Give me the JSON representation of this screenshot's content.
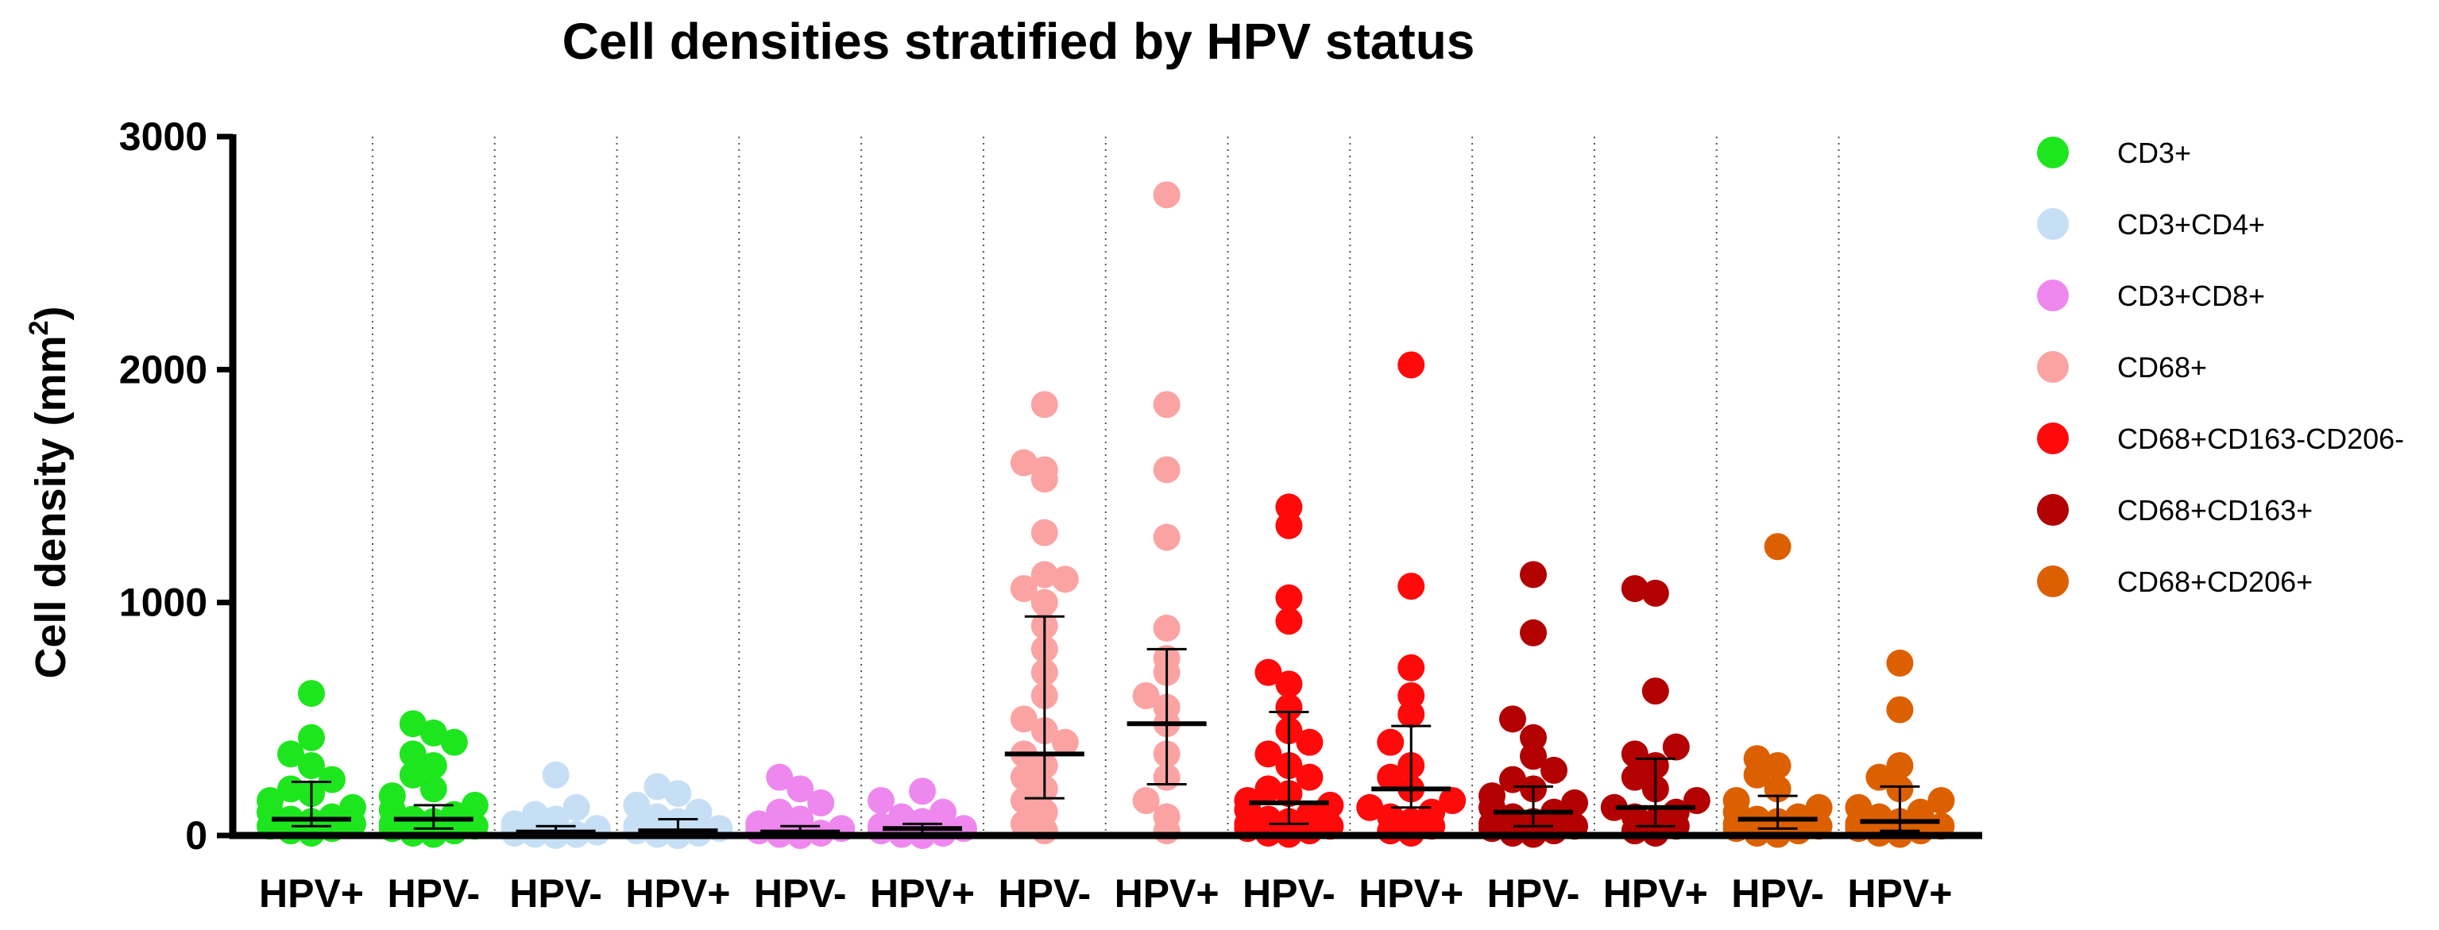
{
  "chart_data": {
    "type": "scatter",
    "title": "Cell densities stratified by HPV status",
    "ylabel_main": "Cell density (mm",
    "ylabel_sup": "2",
    "ylabel_close": ")",
    "ylim": [
      0,
      3000
    ],
    "yticks": [
      "0",
      "1000",
      "2000",
      "3000"
    ],
    "ytick_values": [
      0,
      1000,
      2000,
      3000
    ],
    "grid": "vertical dotted separators between groups",
    "legend_position": "right",
    "legend": [
      {
        "label": "CD3+",
        "color": "#1ee61e"
      },
      {
        "label": "CD3+CD4+",
        "color": "#c6dff5"
      },
      {
        "label": "CD3+CD8+",
        "color": "#ee88ee"
      },
      {
        "label": "CD68+",
        "color": "#fba3a3"
      },
      {
        "label": "CD68+CD163-CD206-",
        "color": "#ff0a0a"
      },
      {
        "label": "CD68+CD163+",
        "color": "#b30000"
      },
      {
        "label": "CD68+CD206+",
        "color": "#dd6000"
      }
    ],
    "groups": [
      {
        "label": "HPV+",
        "series": 0,
        "median": 70,
        "q1": 40,
        "q3": 230,
        "points": [
          610,
          420,
          350,
          300,
          240,
          200,
          180,
          150,
          120,
          100,
          80,
          70,
          60,
          50,
          40,
          30,
          20,
          10
        ]
      },
      {
        "label": "HPV-",
        "series": 0,
        "median": 70,
        "q1": 30,
        "q3": 130,
        "points": [
          480,
          440,
          400,
          350,
          300,
          260,
          200,
          170,
          130,
          110,
          90,
          70,
          60,
          50,
          40,
          30,
          20,
          10,
          5
        ]
      },
      {
        "label": "HPV-",
        "series": 1,
        "median": 15,
        "q1": 5,
        "q3": 40,
        "points": [
          260,
          120,
          90,
          70,
          50,
          30,
          20,
          15,
          10,
          5,
          5,
          0
        ]
      },
      {
        "label": "HPV+",
        "series": 1,
        "median": 20,
        "q1": 5,
        "q3": 70,
        "points": [
          210,
          180,
          130,
          100,
          80,
          60,
          40,
          30,
          20,
          10,
          5,
          0
        ]
      },
      {
        "label": "HPV-",
        "series": 2,
        "median": 15,
        "q1": 5,
        "q3": 40,
        "points": [
          250,
          200,
          140,
          100,
          70,
          50,
          30,
          20,
          10,
          5,
          0
        ]
      },
      {
        "label": "HPV+",
        "series": 2,
        "median": 30,
        "q1": 10,
        "q3": 50,
        "points": [
          190,
          150,
          100,
          80,
          60,
          40,
          30,
          20,
          10,
          5,
          0
        ]
      },
      {
        "label": "HPV-",
        "series": 3,
        "median": 350,
        "q1": 160,
        "q3": 940,
        "points": [
          1850,
          1600,
          1570,
          1530,
          1300,
          1120,
          1100,
          1060,
          1000,
          900,
          800,
          700,
          600,
          500,
          450,
          400,
          350,
          300,
          250,
          200,
          150,
          100,
          50,
          20
        ]
      },
      {
        "label": "HPV+",
        "series": 3,
        "median": 480,
        "q1": 220,
        "q3": 800,
        "points": [
          2750,
          1850,
          1570,
          1280,
          890,
          760,
          700,
          600,
          550,
          480,
          350,
          250,
          150,
          80,
          20
        ]
      },
      {
        "label": "HPV-",
        "series": 4,
        "median": 140,
        "q1": 50,
        "q3": 530,
        "points": [
          1410,
          1330,
          1020,
          920,
          700,
          650,
          550,
          450,
          400,
          350,
          300,
          250,
          200,
          180,
          150,
          130,
          110,
          90,
          70,
          60,
          50,
          40,
          30,
          20,
          10,
          5
        ]
      },
      {
        "label": "HPV+",
        "series": 4,
        "median": 200,
        "q1": 120,
        "q3": 470,
        "points": [
          2020,
          1070,
          720,
          600,
          520,
          400,
          300,
          250,
          200,
          150,
          120,
          100,
          80,
          60,
          40,
          20,
          10
        ]
      },
      {
        "label": "HPV-",
        "series": 5,
        "median": 100,
        "q1": 40,
        "q3": 210,
        "points": [
          1120,
          870,
          500,
          420,
          340,
          280,
          240,
          200,
          170,
          140,
          120,
          100,
          80,
          60,
          50,
          40,
          30,
          20,
          10,
          5
        ]
      },
      {
        "label": "HPV+",
        "series": 5,
        "median": 120,
        "q1": 40,
        "q3": 330,
        "points": [
          1060,
          1040,
          620,
          380,
          350,
          300,
          250,
          200,
          150,
          120,
          100,
          80,
          60,
          40,
          20,
          10
        ]
      },
      {
        "label": "HPV-",
        "series": 6,
        "median": 70,
        "q1": 30,
        "q3": 170,
        "points": [
          1240,
          330,
          300,
          260,
          200,
          150,
          120,
          100,
          80,
          70,
          60,
          50,
          40,
          30,
          20,
          10,
          5
        ]
      },
      {
        "label": "HPV+",
        "series": 6,
        "median": 60,
        "q1": 20,
        "q3": 210,
        "points": [
          740,
          540,
          300,
          250,
          200,
          150,
          120,
          100,
          80,
          60,
          50,
          40,
          30,
          20,
          10,
          5
        ]
      }
    ]
  }
}
